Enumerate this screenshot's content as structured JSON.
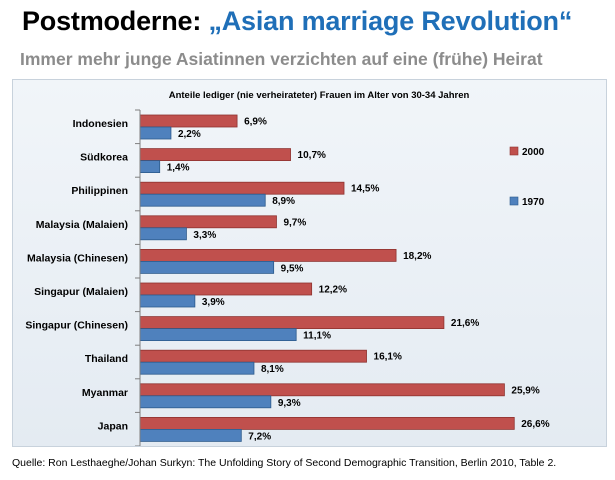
{
  "slide": {
    "title_prefix": "Postmoderne:",
    "title_highlight": "„Asian marriage Revolution“",
    "subtitle": "Immer mehr junge Asiatinnen verzichten auf eine (frühe) Heirat",
    "source": "Quelle: Ron Lesthaeghe/Johan Surkyn: The Unfolding  Story of Second Demographic Transition, Berlin 2010, Table 2."
  },
  "colors": {
    "series_2000": "#c0504d",
    "series_1970": "#4f81bd",
    "highlight": "#1f6fb8"
  },
  "chart_data": {
    "type": "bar",
    "orientation": "horizontal",
    "title": "Anteile lediger (nie verheirateter) Frauen im Alter von 30-34 Jahren",
    "xlabel": "",
    "ylabel": "",
    "xlim": [
      0,
      30
    ],
    "grid": false,
    "legend": "right",
    "categories": [
      "Indonesien",
      "Südkorea",
      "Philippinen",
      "Malaysia (Malaien)",
      "Malaysia (Chinesen)",
      "Singapur (Malaien)",
      "Singapur (Chinesen)",
      "Thailand",
      "Myanmar",
      "Japan"
    ],
    "series": [
      {
        "name": "2000",
        "values": [
          6.9,
          10.7,
          14.5,
          9.7,
          18.2,
          12.2,
          21.6,
          16.1,
          25.9,
          26.6
        ],
        "labels": [
          "6,9%",
          "10,7%",
          "14,5%",
          "9,7%",
          "18,2%",
          "12,2%",
          "21,6%",
          "16,1%",
          "25,9%",
          "26,6%"
        ]
      },
      {
        "name": "1970",
        "values": [
          2.2,
          1.4,
          8.9,
          3.3,
          9.5,
          3.9,
          11.1,
          8.1,
          9.3,
          7.2
        ],
        "labels": [
          "2,2%",
          "1,4%",
          "8,9%",
          "3,3%",
          "9,5%",
          "3,9%",
          "11,1%",
          "8,1%",
          "9,3%",
          "7,2%"
        ]
      }
    ]
  }
}
